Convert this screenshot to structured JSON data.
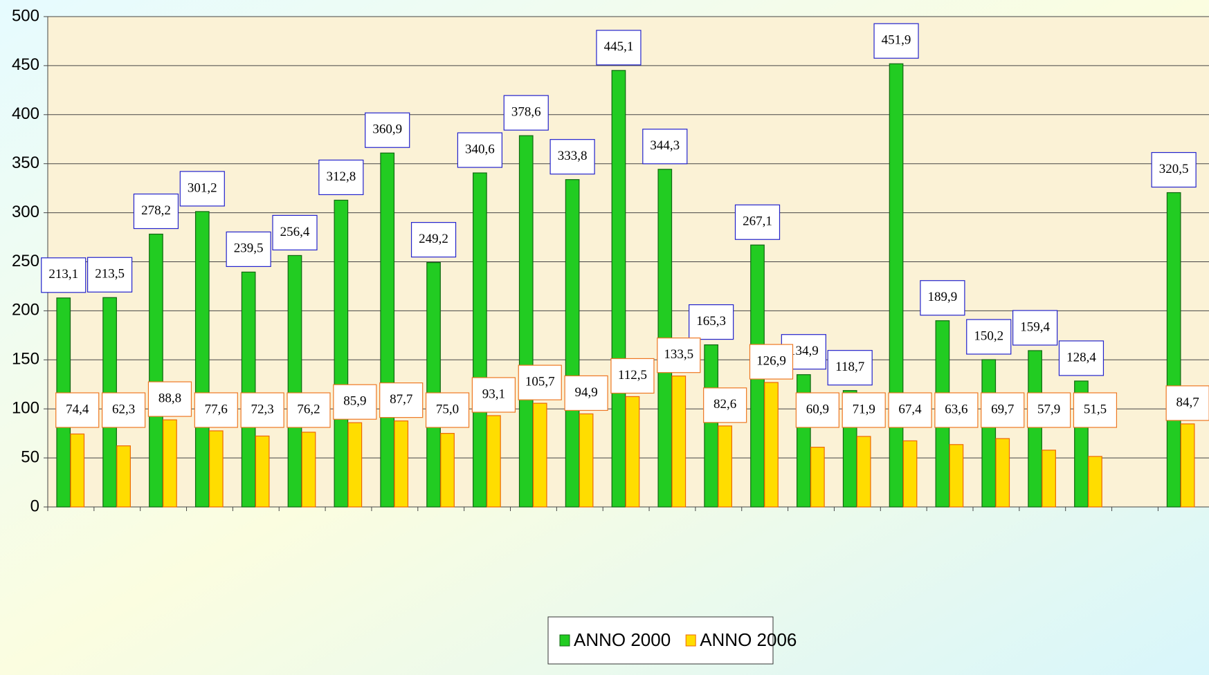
{
  "chart_data": {
    "type": "bar",
    "categories": [
      null,
      null,
      null,
      null,
      null,
      null,
      null,
      null,
      null,
      null,
      null,
      null,
      null,
      null,
      null,
      null,
      null,
      null,
      null,
      null,
      null,
      null,
      null,
      null,
      null
    ],
    "series": [
      {
        "name": "ANNO 2000",
        "color": "#22cc22",
        "values": [
          213.1,
          213.5,
          278.2,
          301.2,
          239.5,
          256.4,
          312.8,
          360.9,
          249.2,
          340.6,
          378.6,
          333.8,
          445.1,
          344.3,
          165.3,
          267.1,
          134.9,
          118.7,
          451.9,
          189.9,
          150.2,
          159.4,
          128.4,
          null,
          320.5
        ],
        "value_labels": [
          "213,1",
          "213,5",
          "278,2",
          "301,2",
          "239,5",
          "256,4",
          "312,8",
          "360,9",
          "249,2",
          "340,6",
          "378,6",
          "333,8",
          "445,1",
          "344,3",
          "165,3",
          "267,1",
          "134,9",
          "118,7",
          "451,9",
          "189,9",
          "150,2",
          "159,4",
          "128,4",
          null,
          "320,5"
        ]
      },
      {
        "name": "ANNO 2006",
        "color": "#ffdd00",
        "values": [
          74.4,
          62.3,
          88.8,
          77.6,
          72.3,
          76.2,
          85.9,
          87.7,
          75.0,
          93.1,
          105.7,
          94.9,
          112.5,
          133.5,
          82.6,
          126.9,
          60.9,
          71.9,
          67.4,
          63.6,
          69.7,
          57.9,
          51.5,
          null,
          84.7
        ],
        "value_labels": [
          "74,4",
          "62,3",
          "88,8",
          "77,6",
          "72,3",
          "76,2",
          "85,9",
          "87,7",
          "75,0",
          "93,1",
          "105,7",
          "94,9",
          "112,5",
          "133,5",
          "82,6",
          "126,9",
          "60,9",
          "71,9",
          "67,4",
          "63,6",
          "69,7",
          "57,9",
          "51,5",
          null,
          "84,7"
        ]
      }
    ],
    "ylim": [
      0,
      500
    ],
    "yticks": [
      0,
      50,
      100,
      150,
      200,
      250,
      300,
      350,
      400,
      450,
      500
    ],
    "grid": true,
    "legend": "bottom"
  }
}
